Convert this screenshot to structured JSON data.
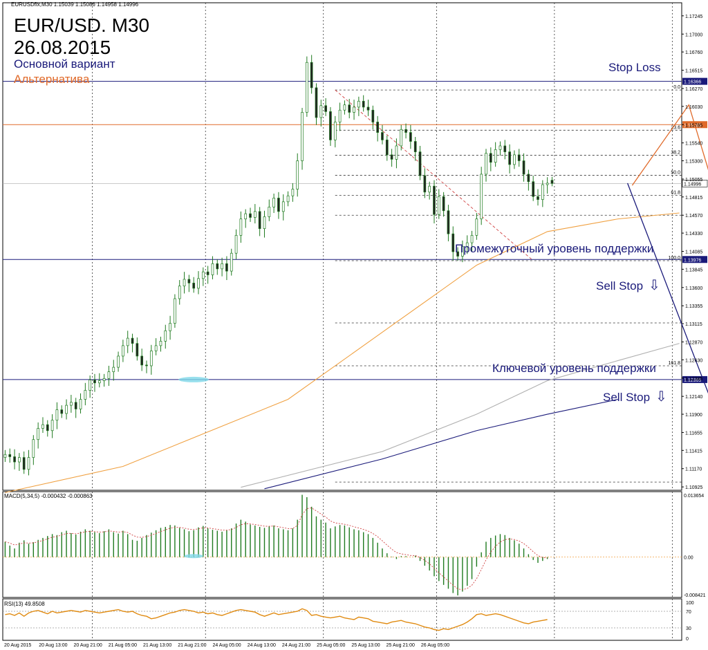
{
  "header": {
    "symbol_line": "EURUSDfix,M30  1.15039 1.15086 1.14958 1.14996",
    "title": "EUR/USD. M30",
    "date": "26.08.2015",
    "variant_main": "Основной вариант",
    "variant_alt": "Альтернатива"
  },
  "labels": {
    "stop_loss": "Stop Loss",
    "intermediate_support": "Промежуточный уровень поддержки",
    "sell_stop_1": "Sell Stop",
    "key_support": "Ключевой уровень поддержки",
    "sell_stop_2": "Sell Stop",
    "arrow_glyph": "⇩"
  },
  "colors": {
    "main_variant": "#1a1a7a",
    "alternative": "#e06a2a",
    "bull": "#1e7a1e",
    "ma_orange": "#f0a040",
    "ma_grey": "#b0b0b0",
    "ma_navy": "#1a1a7a",
    "fib_red": "#d04040",
    "highlight": "#7fd8e8"
  },
  "chart_data": [
    {
      "type": "candlestick",
      "symbol": "EURUSDfix",
      "timeframe": "M30",
      "ohlc_last": {
        "open": 1.15039,
        "high": 1.15086,
        "low": 1.14958,
        "close": 1.14996
      },
      "ylim": [
        1.1088,
        1.1742
      ],
      "y_ticks": [
        1.17245,
        1.17,
        1.1676,
        1.16515,
        1.1627,
        1.1603,
        1.15785,
        1.1554,
        1.153,
        1.15055,
        1.14815,
        1.1457,
        1.1433,
        1.14085,
        1.13845,
        1.136,
        1.13355,
        1.13115,
        1.1287,
        1.1263,
        1.12385,
        1.1214,
        1.119,
        1.11655,
        1.11415,
        1.1117,
        1.10925
      ],
      "x_tick_labels": [
        "20 Aug 2015",
        "20 Aug 13:00",
        "20 Aug 21:00",
        "21 Aug 05:00",
        "21 Aug 13:00",
        "21 Aug 21:00",
        "24 Aug 05:00",
        "24 Aug 13:00",
        "24 Aug 21:00",
        "25 Aug 05:00",
        "25 Aug 13:00",
        "25 Aug 21:00",
        "26 Aug 05:00"
      ],
      "price_levels": [
        {
          "value": 1.16366,
          "label": "1.16366",
          "role": "stop_loss"
        },
        {
          "value": 1.15785,
          "label": "1.15785",
          "role": "alternative"
        },
        {
          "value": 1.14996,
          "label": "1.14996",
          "role": "current"
        },
        {
          "value": 1.13976,
          "label": "1.13976",
          "role": "intermediate_support"
        },
        {
          "value": 1.12365,
          "label": "1.12365",
          "role": "key_support"
        }
      ],
      "fibonacci": [
        {
          "label": "0.0",
          "value": 1.1625
        },
        {
          "label": "23.6",
          "value": 1.1571
        },
        {
          "label": "38.2",
          "value": 1.15375
        },
        {
          "label": "50.0",
          "value": 1.15105
        },
        {
          "label": "61.8",
          "value": 1.14835
        },
        {
          "label": "100.0",
          "value": 1.1396
        },
        {
          "label": "161.8",
          "value": 1.1255
        }
      ],
      "fib_extra_levels": [
        1.1457,
        1.13125,
        1.1099
      ],
      "closes": [
        1.1136,
        1.1133,
        1.1126,
        1.1132,
        1.1116,
        1.1132,
        1.1156,
        1.1171,
        1.1176,
        1.1168,
        1.1182,
        1.1196,
        1.1191,
        1.1202,
        1.1206,
        1.1197,
        1.121,
        1.1222,
        1.1236,
        1.1232,
        1.1235,
        1.1238,
        1.1247,
        1.1253,
        1.1268,
        1.1282,
        1.1292,
        1.1285,
        1.1268,
        1.1256,
        1.1255,
        1.1275,
        1.1282,
        1.1288,
        1.1302,
        1.1312,
        1.1345,
        1.1362,
        1.1371,
        1.1366,
        1.1359,
        1.1372,
        1.1381,
        1.1377,
        1.1392,
        1.1385,
        1.1392,
        1.1382,
        1.1406,
        1.143,
        1.1452,
        1.1459,
        1.1454,
        1.1462,
        1.1439,
        1.1455,
        1.1468,
        1.148,
        1.1462,
        1.1475,
        1.1483,
        1.1492,
        1.153,
        1.1595,
        1.1662,
        1.1628,
        1.1588,
        1.1604,
        1.1596,
        1.1558,
        1.1582,
        1.1598,
        1.1605,
        1.1595,
        1.1602,
        1.161,
        1.1602,
        1.1598,
        1.1582,
        1.1568,
        1.1558,
        1.1538,
        1.1532,
        1.155,
        1.1572,
        1.1568,
        1.1556,
        1.1542,
        1.151,
        1.1488,
        1.1496,
        1.1458,
        1.1482,
        1.1463,
        1.1432,
        1.1408,
        1.1402,
        1.1415,
        1.142,
        1.143,
        1.1452,
        1.1512,
        1.154,
        1.1528,
        1.1545,
        1.155,
        1.1542,
        1.1525,
        1.1538,
        1.153,
        1.1512,
        1.1502,
        1.1482,
        1.1478,
        1.1498,
        1.15
      ],
      "moving_averages": [
        {
          "color": "orange",
          "points": [
            [
              0,
              1.1085
            ],
            [
              25,
              1.112
            ],
            [
              60,
              1.121
            ],
            [
              80,
              1.13
            ],
            [
              100,
              1.139
            ],
            [
              115,
              1.1435
            ],
            [
              130,
              1.1452
            ],
            [
              143,
              1.146
            ]
          ]
        },
        {
          "color": "grey",
          "points": [
            [
              50,
              1.1092
            ],
            [
              80,
              1.114
            ],
            [
              100,
              1.119
            ],
            [
              115,
              1.1235
            ],
            [
              130,
              1.1262
            ],
            [
              143,
              1.1285
            ]
          ]
        },
        {
          "color": "navy",
          "points": [
            [
              55,
              1.109
            ],
            [
              80,
              1.113
            ],
            [
              100,
              1.1168
            ],
            [
              115,
              1.119
            ],
            [
              130,
              1.121
            ]
          ]
        }
      ],
      "projections": [
        {
          "variant": "main",
          "points": [
            [
              132,
              1.15
            ],
            [
              155,
              1.1122
            ]
          ]
        },
        {
          "variant": "alternative",
          "points": [
            [
              133,
              1.1497
            ],
            [
              145,
              1.1605
            ],
            [
              168,
              1.1122
            ]
          ]
        }
      ],
      "fib_triangle_from": [
        1.1625,
        1.1396
      ],
      "highlight_value": 1.12365
    },
    {
      "type": "bar",
      "label": "MACD(5,34,5) -0.000432 -0.000863",
      "y_ticks": [
        0.013654,
        0.0,
        -0.008421
      ],
      "values": [
        0.0032,
        0.0024,
        0.0018,
        0.003,
        0.0035,
        0.0028,
        0.0031,
        0.0036,
        0.004,
        0.0044,
        0.0048,
        0.0046,
        0.0052,
        0.0055,
        0.005,
        0.0047,
        0.0053,
        0.0058,
        0.0055,
        0.0052,
        0.005,
        0.0054,
        0.0058,
        0.0052,
        0.0049,
        0.0055,
        0.0048,
        0.0036,
        0.0034,
        0.004,
        0.0046,
        0.0051,
        0.0056,
        0.0061,
        0.0063,
        0.0067,
        0.0066,
        0.0061,
        0.0058,
        0.0054,
        0.0056,
        0.0062,
        0.0065,
        0.006,
        0.0057,
        0.0055,
        0.0053,
        0.0056,
        0.006,
        0.007,
        0.0078,
        0.0074,
        0.0068,
        0.0066,
        0.0063,
        0.0061,
        0.0064,
        0.0066,
        0.006,
        0.0058,
        0.0056,
        0.006,
        0.0078,
        0.013,
        0.0125,
        0.0105,
        0.0085,
        0.0078,
        0.0072,
        0.006,
        0.0064,
        0.0067,
        0.0066,
        0.0062,
        0.0058,
        0.0056,
        0.0052,
        0.0048,
        0.004,
        0.003,
        0.0018,
        0.0008,
        0.0001,
        -0.0004,
        0.0002,
        0.0002,
        0.0,
        0.0003,
        -0.0008,
        -0.0018,
        -0.0028,
        -0.004,
        -0.005,
        -0.0058,
        -0.0066,
        -0.0075,
        -0.008,
        -0.0072,
        -0.006,
        -0.0046,
        -0.002,
        0.001,
        0.0032,
        0.004,
        0.0045,
        0.0048,
        0.0046,
        0.004,
        0.0035,
        0.0028,
        0.0018,
        0.0006,
        -0.0006,
        -0.0012,
        -0.0008,
        -0.0004
      ]
    },
    {
      "type": "line",
      "label": "RSI(13) 49.8508",
      "y_ticks": [
        100,
        70,
        30,
        0
      ],
      "values": [
        62,
        64,
        60,
        66,
        58,
        66,
        70,
        72,
        68,
        64,
        70,
        66,
        68,
        70,
        72,
        70,
        68,
        72,
        70,
        68,
        66,
        68,
        70,
        72,
        74,
        70,
        68,
        70,
        64,
        60,
        58,
        52,
        54,
        58,
        62,
        66,
        68,
        72,
        74,
        72,
        70,
        66,
        68,
        64,
        66,
        62,
        60,
        64,
        68,
        72,
        74,
        72,
        70,
        68,
        62,
        58,
        62,
        66,
        62,
        64,
        66,
        68,
        70,
        76,
        72,
        60,
        62,
        58,
        56,
        54,
        56,
        58,
        54,
        52,
        50,
        56,
        54,
        52,
        46,
        44,
        42,
        40,
        44,
        46,
        48,
        44,
        42,
        40,
        36,
        32,
        30,
        26,
        24,
        28,
        26,
        30,
        34,
        38,
        44,
        52,
        62,
        64,
        60,
        62,
        64,
        62,
        58,
        54,
        50,
        46,
        42,
        40,
        44,
        46,
        48,
        50
      ]
    }
  ]
}
